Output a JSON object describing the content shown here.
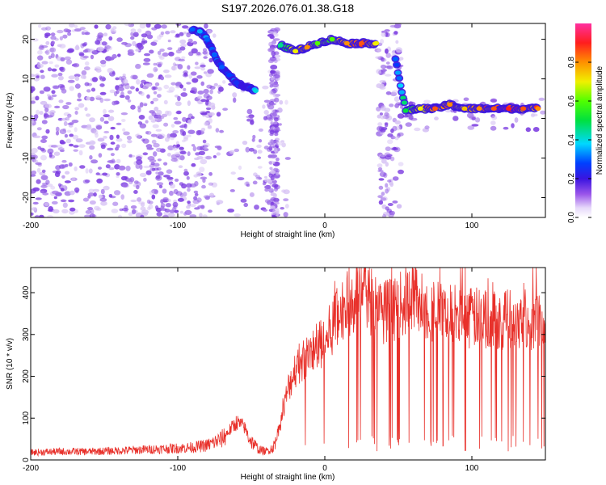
{
  "figure_title": "S197.2026.076.01.38.G18",
  "colors": {
    "snr_line": "#e8302a",
    "spectrogram_noise": "#a070e8",
    "spectrogram_noise_light": "#d6c2f4"
  },
  "chart_data": [
    {
      "type": "heatmap",
      "title": "S197.2026.076.01.38.G18",
      "xlabel": "Height of straight line (km)",
      "ylabel": "Frequency (Hz)",
      "xlim": [
        -200,
        150
      ],
      "ylim": [
        -25,
        24
      ],
      "xticks": [
        -200,
        -100,
        0,
        100
      ],
      "xtick_labels": [
        "-200",
        "-100",
        "0",
        "100"
      ],
      "yticks": [
        20,
        10,
        0,
        -10,
        -20
      ],
      "ytick_labels": [
        "20",
        "10",
        "0",
        "-10",
        "-20"
      ],
      "colorbar": {
        "label": "Normalized spectral amplitude",
        "range": [
          0,
          1
        ],
        "ticks": [
          0.0,
          0.2,
          0.4,
          0.6,
          0.8
        ],
        "tick_labels": [
          "0.0",
          "0.2",
          "0.4",
          "0.6",
          "0.8"
        ],
        "colormap": "rainbow: white-violet-blue-cyan-green-yellow-orange-red-magenta"
      },
      "ridge": [
        {
          "x": -90,
          "y": 22.5,
          "amp": 0.3
        },
        {
          "x": -85,
          "y": 22,
          "amp": 0.35
        },
        {
          "x": -80,
          "y": 20,
          "amp": 0.3
        },
        {
          "x": -75,
          "y": 16,
          "amp": 0.3
        },
        {
          "x": -70,
          "y": 13,
          "amp": 0.3
        },
        {
          "x": -65,
          "y": 11,
          "amp": 0.28
        },
        {
          "x": -60,
          "y": 9,
          "amp": 0.25
        },
        {
          "x": -55,
          "y": 8,
          "amp": 0.2
        },
        {
          "x": -47,
          "y": 7,
          "amp": 0.4
        },
        {
          "x": -30,
          "y": 18.5,
          "amp": 0.45
        },
        {
          "x": -20,
          "y": 17,
          "amp": 0.7
        },
        {
          "x": -12,
          "y": 18,
          "amp": 0.8
        },
        {
          "x": -5,
          "y": 19,
          "amp": 0.6
        },
        {
          "x": 5,
          "y": 20,
          "amp": 0.6
        },
        {
          "x": 15,
          "y": 19,
          "amp": 0.8
        },
        {
          "x": 25,
          "y": 19,
          "amp": 0.85
        },
        {
          "x": 35,
          "y": 19,
          "amp": 0.7
        },
        {
          "x": 48,
          "y": 15,
          "amp": 0.3
        },
        {
          "x": 55,
          "y": 2,
          "amp": 0.5
        },
        {
          "x": 65,
          "y": 2.5,
          "amp": 0.7
        },
        {
          "x": 75,
          "y": 2.5,
          "amp": 0.85
        },
        {
          "x": 85,
          "y": 3.5,
          "amp": 0.8
        },
        {
          "x": 95,
          "y": 2.5,
          "amp": 0.75
        },
        {
          "x": 105,
          "y": 2.5,
          "amp": 0.8
        },
        {
          "x": 115,
          "y": 2.5,
          "amp": 0.85
        },
        {
          "x": 125,
          "y": 2.5,
          "amp": 0.9
        },
        {
          "x": 135,
          "y": 2.5,
          "amp": 0.85
        },
        {
          "x": 145,
          "y": 2.5,
          "amp": 0.8
        }
      ],
      "noise_regions": [
        {
          "x_range": [
            -200,
            -75
          ],
          "y_range": [
            -25,
            24
          ],
          "density": "high"
        },
        {
          "x_range": [
            -75,
            -35
          ],
          "y_range": [
            -25,
            10
          ],
          "density": "low"
        },
        {
          "x_range": [
            -37,
            -32
          ],
          "y_range": [
            -25,
            24
          ],
          "density": "medium"
        },
        {
          "x_range": [
            -50,
            -25
          ],
          "y_range": [
            -25,
            5
          ],
          "density": "low"
        },
        {
          "x_range": [
            36,
            52
          ],
          "y_range": [
            -25,
            24
          ],
          "density": "medium"
        },
        {
          "x_range": [
            52,
            150
          ],
          "y_range": [
            -3,
            5
          ],
          "density": "low"
        }
      ]
    },
    {
      "type": "line",
      "title": "",
      "xlabel": "Height of straight line (km)",
      "ylabel": "SNR (10 * v/v)",
      "xlim": [
        -200,
        150
      ],
      "ylim": [
        0,
        460
      ],
      "xticks": [
        -200,
        -100,
        0,
        100
      ],
      "xtick_labels": [
        "-200",
        "-100",
        "0",
        "100"
      ],
      "yticks": [
        0,
        100,
        200,
        300,
        400
      ],
      "ytick_labels": [
        "0",
        "100",
        "200",
        "300",
        "400"
      ],
      "series": [
        {
          "name": "SNR",
          "color": "#e8302a",
          "x": [
            -200,
            -180,
            -160,
            -140,
            -120,
            -100,
            -90,
            -80,
            -70,
            -65,
            -60,
            -55,
            -50,
            -45,
            -40,
            -35,
            -30,
            -25,
            -20,
            -15,
            -10,
            -5,
            0,
            5,
            10,
            15,
            20,
            25,
            30,
            35,
            40,
            45,
            50,
            55,
            60,
            70,
            80,
            90,
            100,
            110,
            120,
            130,
            140,
            150
          ],
          "y": [
            18,
            20,
            20,
            22,
            25,
            28,
            30,
            35,
            50,
            70,
            90,
            80,
            45,
            25,
            20,
            30,
            90,
            170,
            220,
            240,
            250,
            270,
            280,
            320,
            350,
            370,
            390,
            400,
            385,
            370,
            355,
            360,
            365,
            380,
            390,
            365,
            350,
            345,
            340,
            338,
            335,
            340,
            335,
            340
          ]
        }
      ]
    }
  ]
}
